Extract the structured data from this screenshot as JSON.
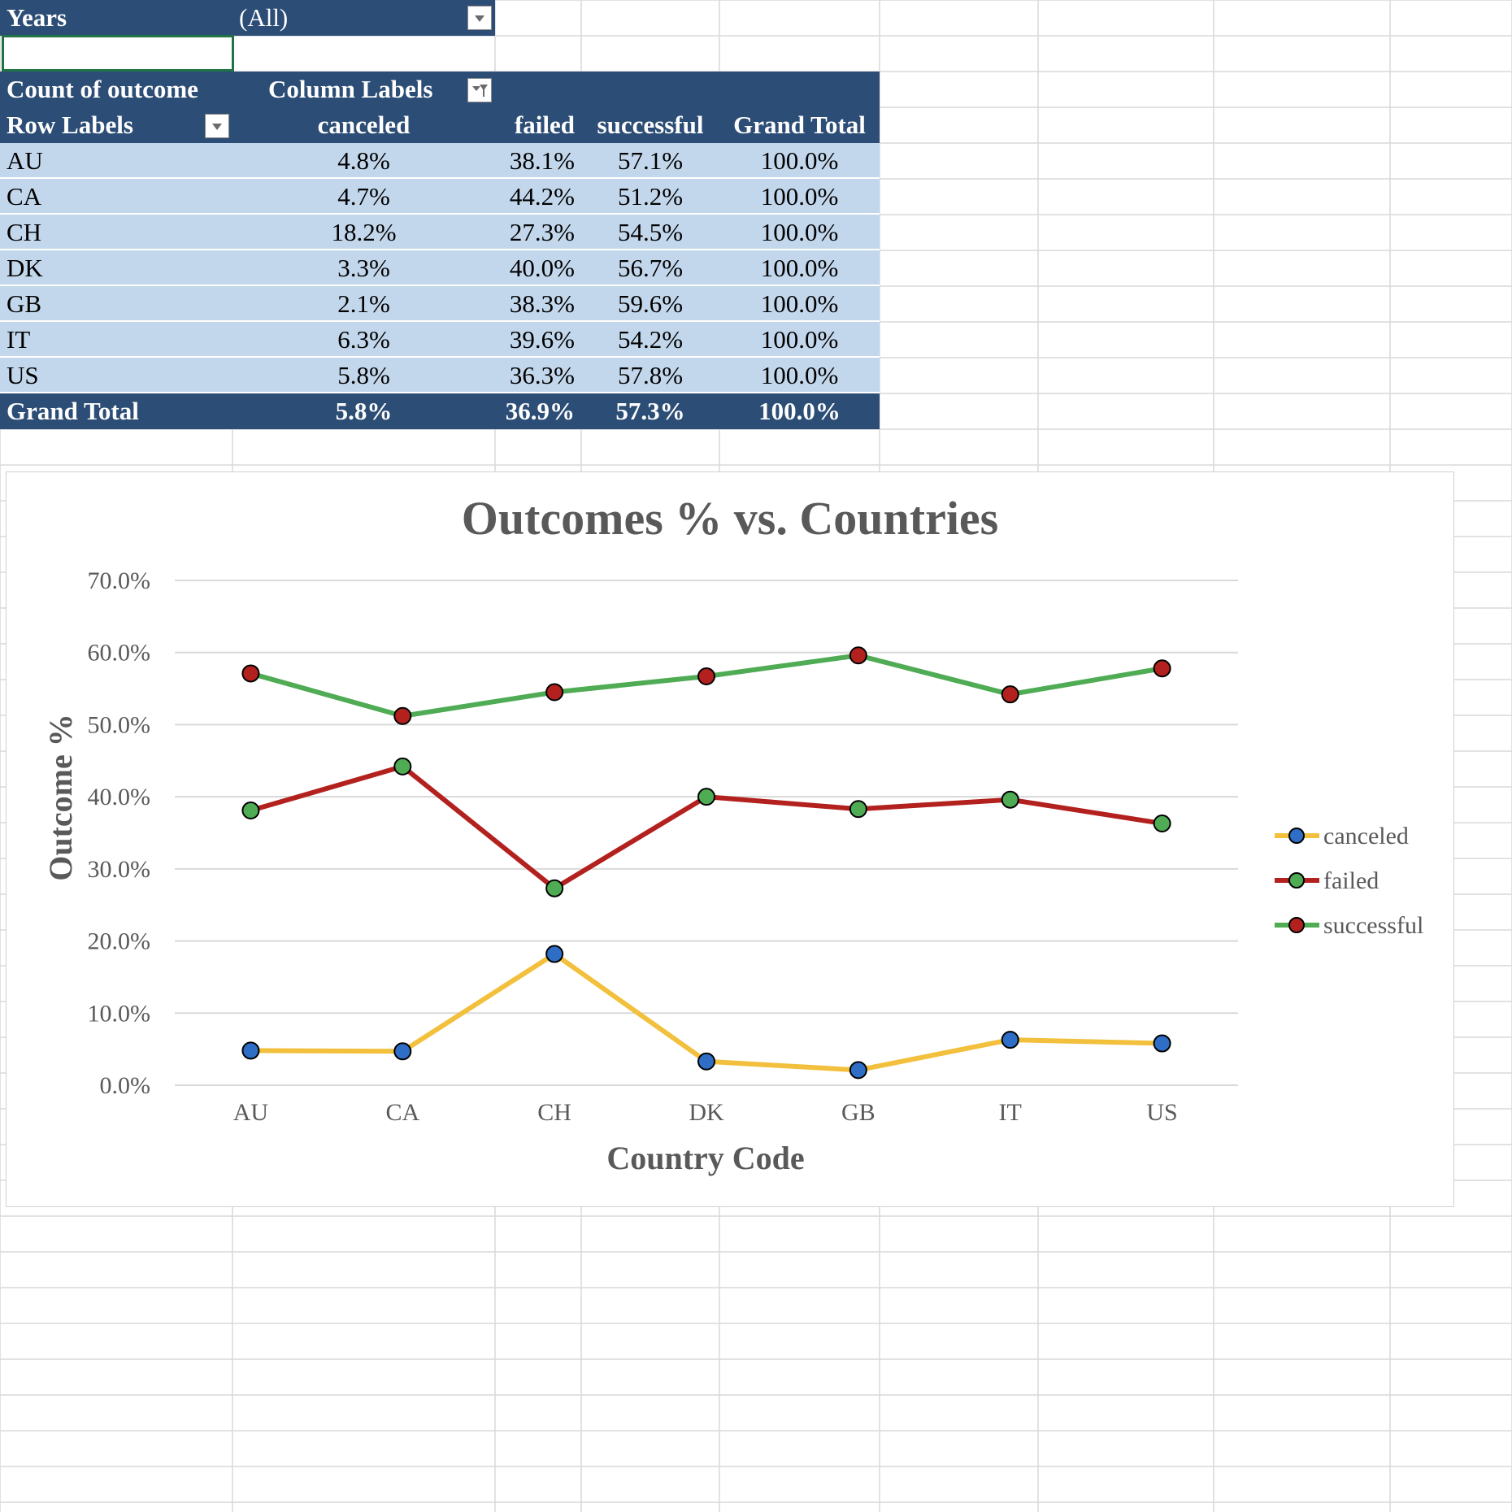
{
  "filter": {
    "label": "Years",
    "value": "(All)"
  },
  "pivot": {
    "corner_label": "Count of outcome",
    "column_labels": "Column Labels",
    "row_labels": "Row Labels",
    "columns": [
      "canceled",
      "failed",
      "successful",
      "Grand Total"
    ],
    "rows": [
      {
        "label": "AU",
        "values": [
          "4.8%",
          "38.1%",
          "57.1%",
          "100.0%"
        ]
      },
      {
        "label": "CA",
        "values": [
          "4.7%",
          "44.2%",
          "51.2%",
          "100.0%"
        ]
      },
      {
        "label": "CH",
        "values": [
          "18.2%",
          "27.3%",
          "54.5%",
          "100.0%"
        ]
      },
      {
        "label": "DK",
        "values": [
          "3.3%",
          "40.0%",
          "56.7%",
          "100.0%"
        ]
      },
      {
        "label": "GB",
        "values": [
          "2.1%",
          "38.3%",
          "59.6%",
          "100.0%"
        ]
      },
      {
        "label": "IT",
        "values": [
          "6.3%",
          "39.6%",
          "54.2%",
          "100.0%"
        ]
      },
      {
        "label": "US",
        "values": [
          "5.8%",
          "36.3%",
          "57.8%",
          "100.0%"
        ]
      }
    ],
    "total": {
      "label": "Grand Total",
      "values": [
        "5.8%",
        "36.9%",
        "57.3%",
        "100.0%"
      ]
    }
  },
  "colors": {
    "header_bg": "#2c4d75",
    "row_bg": "#c3d7ec",
    "canceled_line": "#f2c03c",
    "failed_line": "#b3211e",
    "successful_line": "#4fac54",
    "marker_blue": "#2f6ec6",
    "marker_green": "#4fac54",
    "marker_red": "#b3211e"
  },
  "chart_data": {
    "type": "line",
    "title": "Outcomes % vs. Countries",
    "xlabel": "Country Code",
    "ylabel": "Outcome %",
    "categories": [
      "AU",
      "CA",
      "CH",
      "DK",
      "GB",
      "IT",
      "US"
    ],
    "ylim": [
      0,
      70
    ],
    "yticks": [
      "0.0%",
      "10.0%",
      "20.0%",
      "30.0%",
      "40.0%",
      "50.0%",
      "60.0%",
      "70.0%"
    ],
    "grid": true,
    "legend": "right",
    "series": [
      {
        "name": "canceled",
        "values": [
          4.8,
          4.7,
          18.2,
          3.3,
          2.1,
          6.3,
          5.8
        ],
        "line": "#f2c03c",
        "marker": "#2f6ec6"
      },
      {
        "name": "failed",
        "values": [
          38.1,
          44.2,
          27.3,
          40.0,
          38.3,
          39.6,
          36.3
        ],
        "line": "#b3211e",
        "marker": "#4fac54"
      },
      {
        "name": "successful",
        "values": [
          57.1,
          51.2,
          54.5,
          56.7,
          59.6,
          54.2,
          57.8
        ],
        "line": "#4fac54",
        "marker": "#b3211e"
      }
    ]
  }
}
